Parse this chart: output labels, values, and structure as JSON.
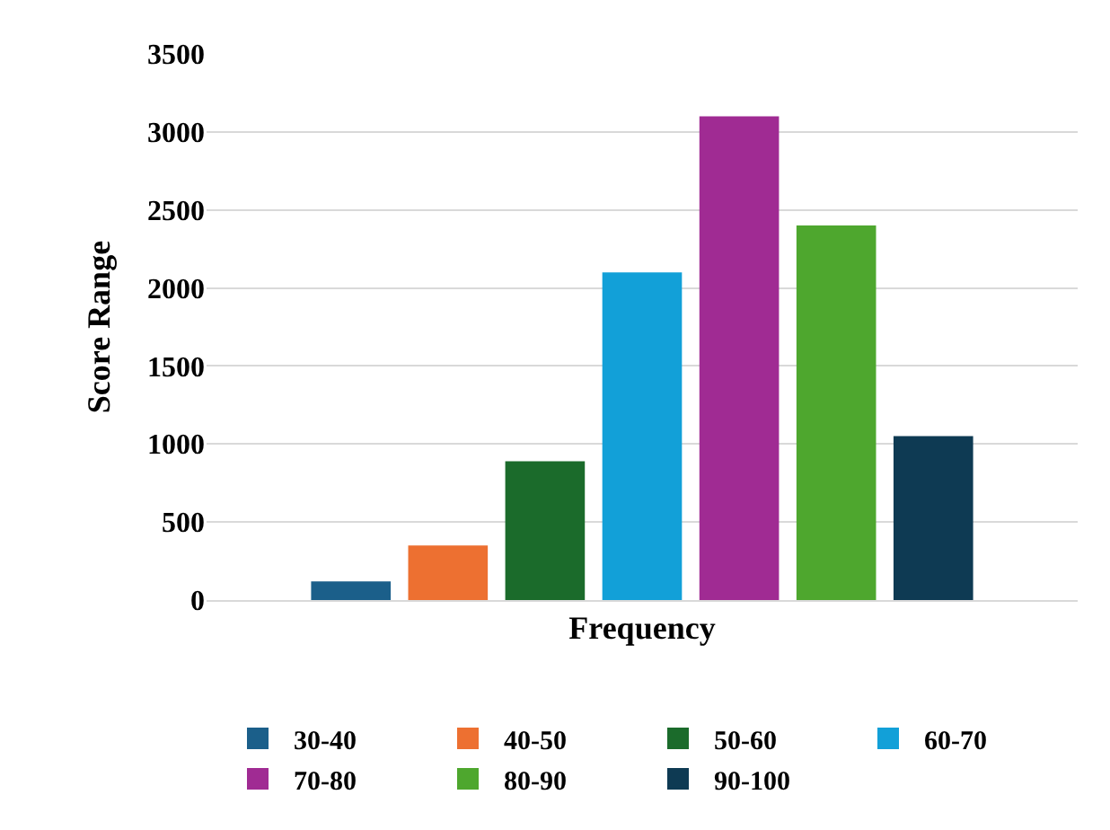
{
  "chart_data": {
    "type": "bar",
    "xlabel": "Frequency",
    "ylabel": "Score Range",
    "categories": [
      null
    ],
    "series": [
      {
        "name": "30-40",
        "color": "#1b5f8a",
        "values": [
          120
        ]
      },
      {
        "name": "40-50",
        "color": "#ed7031",
        "values": [
          350
        ]
      },
      {
        "name": "50-60",
        "color": "#1b6b2b",
        "values": [
          890
        ]
      },
      {
        "name": "60-70",
        "color": "#12a0d8",
        "values": [
          2100
        ]
      },
      {
        "name": "70-80",
        "color": "#a02b93",
        "values": [
          3100
        ]
      },
      {
        "name": "80-90",
        "color": "#4ea72e",
        "values": [
          2400
        ]
      },
      {
        "name": "90-100",
        "color": "#0e3a53",
        "values": [
          1050
        ]
      }
    ],
    "ylim": [
      0,
      3500
    ],
    "yticks": [
      0,
      500,
      1000,
      1500,
      2000,
      2500,
      3000,
      3500
    ],
    "grid": "y",
    "legend": "bottom"
  }
}
